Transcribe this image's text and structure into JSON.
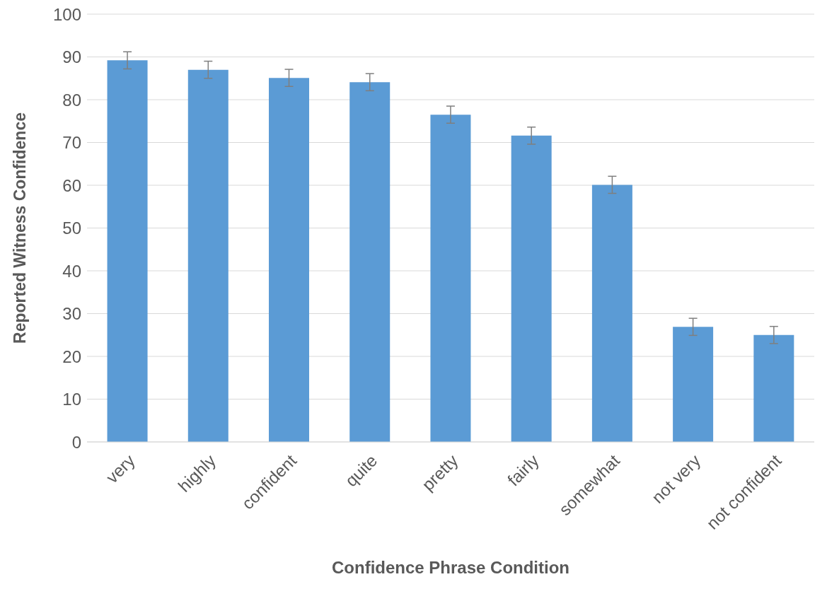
{
  "chart_data": {
    "type": "bar",
    "xlabel": "Confidence Phrase Condition",
    "ylabel": "Reported Witness Confidence",
    "categories": [
      "very",
      "highly",
      "confident",
      "quite",
      "pretty",
      "fairly",
      "somewhat",
      "not very",
      "not confident"
    ],
    "values": [
      89.2,
      87.0,
      85.1,
      84.1,
      76.5,
      71.6,
      60.1,
      26.9,
      25.0
    ],
    "errors": [
      2,
      2,
      2,
      2,
      2,
      2,
      2,
      2,
      2
    ],
    "color": "#5b9bd5",
    "ylim": [
      0,
      100
    ],
    "yticks": [
      0,
      10,
      20,
      30,
      40,
      50,
      60,
      70,
      80,
      90,
      100
    ],
    "grid": "y",
    "legend": false
  }
}
